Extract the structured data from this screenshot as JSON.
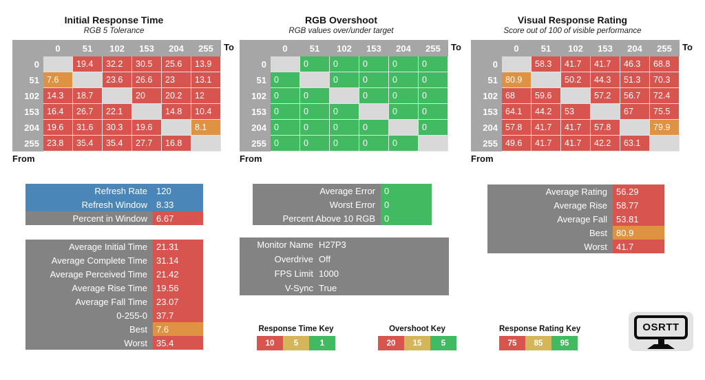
{
  "colors": {
    "red": "#D8544F",
    "orange": "#DE9242",
    "green": "#42BA61",
    "tan": "#D4B55A",
    "blue": "#4A86B8",
    "label_gray": "#838383",
    "header_gray": "#A6A6A6",
    "diagonal_gray": "#D9D9D9"
  },
  "axis": {
    "to": "To",
    "from": "From"
  },
  "tables": [
    {
      "title": "Initial Response Time",
      "subtitle": "RGB 5 Tolerance",
      "headers": [
        "0",
        "51",
        "102",
        "153",
        "204",
        "255"
      ],
      "rows": [
        {
          "label": "0",
          "cells": [
            [
              "",
              "diag"
            ],
            [
              "19.4",
              "red"
            ],
            [
              "32.2",
              "red"
            ],
            [
              "30.5",
              "red"
            ],
            [
              "25.6",
              "red"
            ],
            [
              "13.9",
              "red"
            ]
          ]
        },
        {
          "label": "51",
          "cells": [
            [
              "7.6",
              "orange"
            ],
            [
              "",
              "diag"
            ],
            [
              "23.6",
              "red"
            ],
            [
              "26.6",
              "red"
            ],
            [
              "23",
              "red"
            ],
            [
              "13.1",
              "red"
            ]
          ]
        },
        {
          "label": "102",
          "cells": [
            [
              "14.3",
              "red"
            ],
            [
              "18.7",
              "red"
            ],
            [
              "",
              "diag"
            ],
            [
              "20",
              "red"
            ],
            [
              "20.2",
              "red"
            ],
            [
              "12",
              "red"
            ]
          ]
        },
        {
          "label": "153",
          "cells": [
            [
              "16.4",
              "red"
            ],
            [
              "26.7",
              "red"
            ],
            [
              "22.1",
              "red"
            ],
            [
              "",
              "diag"
            ],
            [
              "14.8",
              "red"
            ],
            [
              "10.4",
              "red"
            ]
          ]
        },
        {
          "label": "204",
          "cells": [
            [
              "19.6",
              "red"
            ],
            [
              "31.6",
              "red"
            ],
            [
              "30.3",
              "red"
            ],
            [
              "19.6",
              "red"
            ],
            [
              "",
              "diag"
            ],
            [
              "8.1",
              "orange"
            ]
          ]
        },
        {
          "label": "255",
          "cells": [
            [
              "23.8",
              "red"
            ],
            [
              "35.4",
              "red"
            ],
            [
              "35.4",
              "red"
            ],
            [
              "27.7",
              "red"
            ],
            [
              "16.8",
              "red"
            ],
            [
              "",
              "diag"
            ]
          ]
        }
      ]
    },
    {
      "title": "RGB Overshoot",
      "subtitle": "RGB values over/under target",
      "headers": [
        "0",
        "51",
        "102",
        "153",
        "204",
        "255"
      ],
      "rows": [
        {
          "label": "0",
          "cells": [
            [
              "",
              "diag"
            ],
            [
              "0",
              "green"
            ],
            [
              "0",
              "green"
            ],
            [
              "0",
              "green"
            ],
            [
              "0",
              "green"
            ],
            [
              "0",
              "green"
            ]
          ]
        },
        {
          "label": "51",
          "cells": [
            [
              "0",
              "green"
            ],
            [
              "",
              "diag"
            ],
            [
              "0",
              "green"
            ],
            [
              "0",
              "green"
            ],
            [
              "0",
              "green"
            ],
            [
              "0",
              "green"
            ]
          ]
        },
        {
          "label": "102",
          "cells": [
            [
              "0",
              "green"
            ],
            [
              "0",
              "green"
            ],
            [
              "",
              "diag"
            ],
            [
              "0",
              "green"
            ],
            [
              "0",
              "green"
            ],
            [
              "0",
              "green"
            ]
          ]
        },
        {
          "label": "153",
          "cells": [
            [
              "0",
              "green"
            ],
            [
              "0",
              "green"
            ],
            [
              "0",
              "green"
            ],
            [
              "",
              "diag"
            ],
            [
              "0",
              "green"
            ],
            [
              "0",
              "green"
            ]
          ]
        },
        {
          "label": "204",
          "cells": [
            [
              "0",
              "green"
            ],
            [
              "0",
              "green"
            ],
            [
              "0",
              "green"
            ],
            [
              "0",
              "green"
            ],
            [
              "",
              "diag"
            ],
            [
              "0",
              "green"
            ]
          ]
        },
        {
          "label": "255",
          "cells": [
            [
              "0",
              "green"
            ],
            [
              "0",
              "green"
            ],
            [
              "0",
              "green"
            ],
            [
              "0",
              "green"
            ],
            [
              "0",
              "green"
            ],
            [
              "",
              "diag"
            ]
          ]
        }
      ]
    },
    {
      "title": "Visual Response Rating",
      "subtitle": "Score out of 100 of visible performance",
      "headers": [
        "0",
        "51",
        "102",
        "153",
        "204",
        "255"
      ],
      "rows": [
        {
          "label": "0",
          "cells": [
            [
              "",
              "diag"
            ],
            [
              "58.3",
              "red"
            ],
            [
              "41.7",
              "red"
            ],
            [
              "41.7",
              "red"
            ],
            [
              "46.3",
              "red"
            ],
            [
              "68.8",
              "red"
            ]
          ]
        },
        {
          "label": "51",
          "cells": [
            [
              "80.9",
              "orange"
            ],
            [
              "",
              "diag"
            ],
            [
              "50.2",
              "red"
            ],
            [
              "44.3",
              "red"
            ],
            [
              "51.3",
              "red"
            ],
            [
              "70.3",
              "red"
            ]
          ]
        },
        {
          "label": "102",
          "cells": [
            [
              "68",
              "red"
            ],
            [
              "59.6",
              "red"
            ],
            [
              "",
              "diag"
            ],
            [
              "57.2",
              "red"
            ],
            [
              "56.7",
              "red"
            ],
            [
              "72.4",
              "red"
            ]
          ]
        },
        {
          "label": "153",
          "cells": [
            [
              "64.1",
              "red"
            ],
            [
              "44.2",
              "red"
            ],
            [
              "53",
              "red"
            ],
            [
              "",
              "diag"
            ],
            [
              "67",
              "red"
            ],
            [
              "75.5",
              "red"
            ]
          ]
        },
        {
          "label": "204",
          "cells": [
            [
              "57.8",
              "red"
            ],
            [
              "41.7",
              "red"
            ],
            [
              "41.7",
              "red"
            ],
            [
              "57.8",
              "red"
            ],
            [
              "",
              "diag"
            ],
            [
              "79.9",
              "orange"
            ]
          ]
        },
        {
          "label": "255",
          "cells": [
            [
              "49.6",
              "red"
            ],
            [
              "41.7",
              "red"
            ],
            [
              "41.7",
              "red"
            ],
            [
              "42.2",
              "red"
            ],
            [
              "63.1",
              "red"
            ],
            [
              "",
              "diag"
            ]
          ]
        }
      ]
    }
  ],
  "summary_boxes": [
    {
      "id": "refresh",
      "rows": [
        {
          "label": "Refresh Rate",
          "value": "120",
          "lbg": "blue",
          "vbg": "blue"
        },
        {
          "label": "Refresh Window",
          "value": "8.33",
          "lbg": "blue",
          "vbg": "blue"
        },
        {
          "label": "Percent in Window",
          "value": "6.67",
          "lbg": "gray",
          "vbg": "red"
        }
      ]
    },
    {
      "id": "times",
      "rows": [
        {
          "label": "Average Initial Time",
          "value": "21.31",
          "lbg": "gray",
          "vbg": "red"
        },
        {
          "label": "Average Complete Time",
          "value": "31.14",
          "lbg": "gray",
          "vbg": "red"
        },
        {
          "label": "Average Perceived Time",
          "value": "21.42",
          "lbg": "gray",
          "vbg": "red"
        },
        {
          "label": "Average Rise Time",
          "value": "19.56",
          "lbg": "gray",
          "vbg": "red"
        },
        {
          "label": "Average Fall Time",
          "value": "23.07",
          "lbg": "gray",
          "vbg": "red"
        },
        {
          "label": "0-255-0",
          "value": "37.7",
          "lbg": "gray",
          "vbg": "red"
        },
        {
          "label": "Best",
          "value": "7.6",
          "lbg": "gray",
          "vbg": "orange"
        },
        {
          "label": "Worst",
          "value": "35.4",
          "lbg": "gray",
          "vbg": "red"
        }
      ]
    },
    {
      "id": "error",
      "rows": [
        {
          "label": "Average Error",
          "value": "0",
          "lbg": "gray",
          "vbg": "green"
        },
        {
          "label": "Worst Error",
          "value": "0",
          "lbg": "gray",
          "vbg": "green"
        },
        {
          "label": "Percent Above 10 RGB",
          "value": "0",
          "lbg": "gray",
          "vbg": "green"
        }
      ]
    },
    {
      "id": "monitor",
      "rows": [
        {
          "label": "Monitor Name",
          "value": "H27P3",
          "lbg": "gray",
          "vbg": "gray"
        },
        {
          "label": "Overdrive",
          "value": "Off",
          "lbg": "gray",
          "vbg": "gray"
        },
        {
          "label": "FPS Limit",
          "value": "1000",
          "lbg": "gray",
          "vbg": "gray"
        },
        {
          "label": "V-Sync",
          "value": "True",
          "lbg": "gray",
          "vbg": "gray"
        }
      ]
    },
    {
      "id": "rating",
      "rows": [
        {
          "label": "Average Rating",
          "value": "56.29",
          "lbg": "gray",
          "vbg": "red"
        },
        {
          "label": "Average Rise",
          "value": "58.77",
          "lbg": "gray",
          "vbg": "red"
        },
        {
          "label": "Average Fall",
          "value": "53.81",
          "lbg": "gray",
          "vbg": "red"
        },
        {
          "label": "Best",
          "value": "80.9",
          "lbg": "gray",
          "vbg": "orange"
        },
        {
          "label": "Worst",
          "value": "41.7",
          "lbg": "gray",
          "vbg": "red"
        }
      ]
    }
  ],
  "keys": [
    {
      "title": "Response Time Key",
      "segments": [
        [
          "10",
          "red"
        ],
        [
          "5",
          "tan"
        ],
        [
          "1",
          "green"
        ]
      ]
    },
    {
      "title": "Overshoot Key",
      "segments": [
        [
          "20",
          "red"
        ],
        [
          "15",
          "tan"
        ],
        [
          "5",
          "green"
        ]
      ]
    },
    {
      "title": "Response Rating Key",
      "segments": [
        [
          "75",
          "red"
        ],
        [
          "85",
          "tan"
        ],
        [
          "95",
          "green"
        ]
      ]
    }
  ],
  "logo": {
    "text": "OSRTT"
  }
}
